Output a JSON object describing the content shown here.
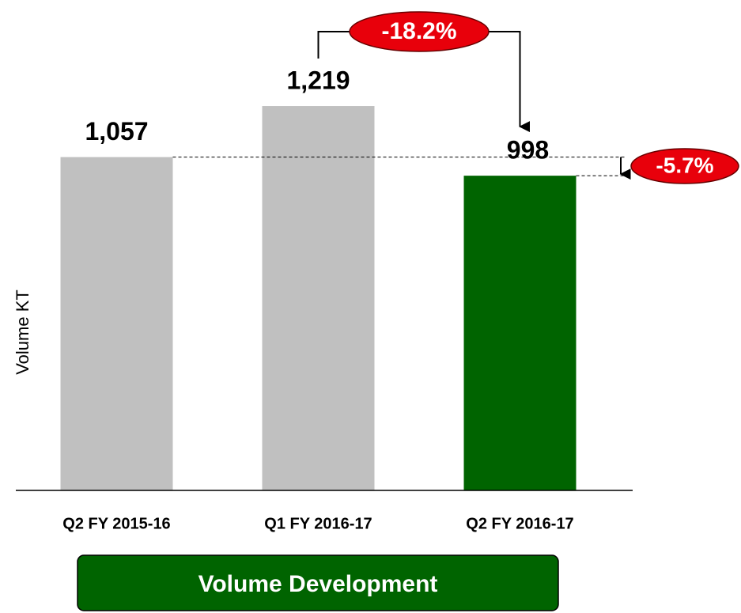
{
  "chart_data": {
    "type": "bar",
    "y_label": "Volume KT",
    "categories": [
      "Q2 FY 2015-16",
      "Q1 FY 2016-17",
      "Q2 FY 2016-17"
    ],
    "values": [
      1057,
      1219,
      998
    ],
    "value_labels": [
      "1,057",
      "1,219",
      "998"
    ],
    "colors": [
      "#c0c0c0",
      "#c0c0c0",
      "#006400"
    ],
    "ylim": [
      0,
      1500
    ],
    "annotations": [
      {
        "text": "-18.2%"
      },
      {
        "text": "-5.7%"
      }
    ],
    "caption": "Volume Development"
  }
}
